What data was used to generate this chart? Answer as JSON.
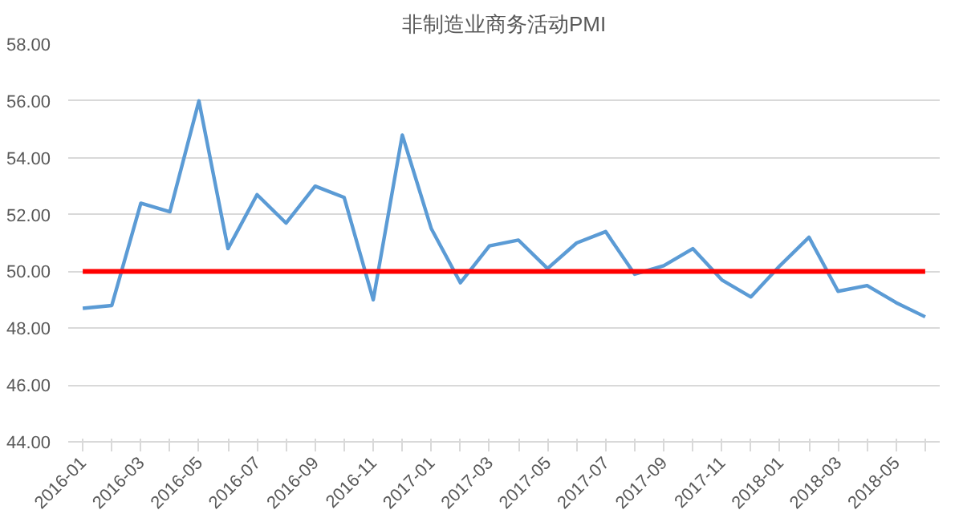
{
  "chart_data": {
    "type": "line",
    "title": "非制造业商务活动PMI",
    "categories": [
      "2016-01",
      null,
      "2016-03",
      null,
      "2016-05",
      null,
      "2016-07",
      null,
      "2016-09",
      null,
      "2016-11",
      null,
      "2017-01",
      null,
      "2017-03",
      null,
      "2017-05",
      null,
      "2017-07",
      null,
      "2017-09",
      null,
      "2017-11",
      null,
      "2018-01",
      null,
      "2018-03",
      null,
      "2018-05",
      null
    ],
    "series": [
      {
        "color": "#5b9bd5",
        "values": [
          48.7,
          48.8,
          52.4,
          52.1,
          56.0,
          50.8,
          52.7,
          51.7,
          53.0,
          52.6,
          49.0,
          54.8,
          51.5,
          49.6,
          50.9,
          51.1,
          50.1,
          51.0,
          51.4,
          49.9,
          50.2,
          50.8,
          49.7,
          49.1,
          50.2,
          51.2,
          49.3,
          49.5,
          48.9,
          48.4
        ]
      }
    ],
    "ylim": [
      44,
      58
    ],
    "yticks": [
      {
        "value": 44,
        "label": "44.00"
      },
      {
        "value": 46,
        "label": "46.00"
      },
      {
        "value": 48,
        "label": "48.00"
      },
      {
        "value": 50,
        "label": "50.00"
      },
      {
        "value": 52,
        "label": "52.00"
      },
      {
        "value": 54,
        "label": "54.00"
      },
      {
        "value": 56,
        "label": "56.00"
      },
      {
        "value": 58,
        "label": "58.00"
      }
    ],
    "ref_lines": [
      {
        "axis": "y",
        "value": 50,
        "color": "#ff0000"
      }
    ],
    "grid": "y",
    "marker": "none",
    "line_style": "solid"
  }
}
